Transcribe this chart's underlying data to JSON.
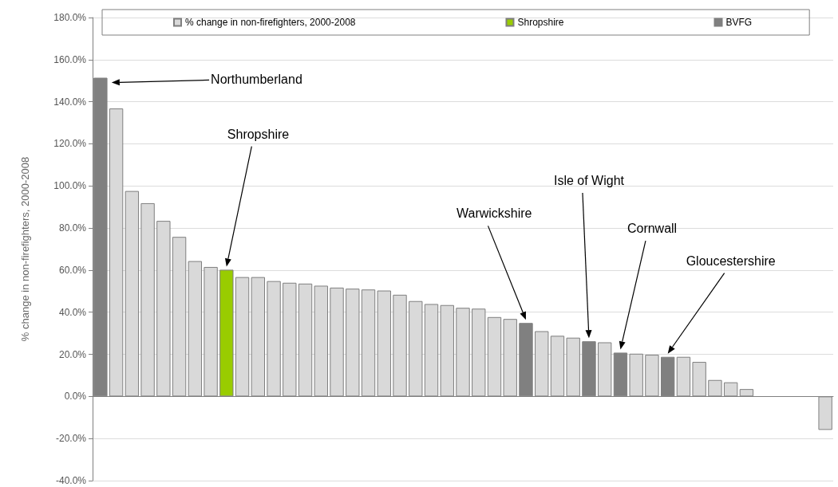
{
  "chart_data": {
    "type": "bar",
    "stacked": true,
    "ylabel": "% change in non-firefighters, 2000-2008",
    "categories": [
      null,
      null,
      null,
      null,
      null,
      null,
      null,
      null,
      null,
      null,
      null,
      null,
      null,
      null,
      null,
      null,
      null,
      null,
      null,
      null,
      null,
      null,
      null,
      null,
      null,
      null,
      null,
      null,
      null,
      null,
      null,
      null,
      null,
      null,
      null,
      null,
      null,
      null,
      null,
      null,
      null,
      null,
      null,
      null,
      null,
      null,
      null
    ],
    "series": [
      {
        "name": "% change in non-firefighters, 2000-2008",
        "color": "#d9d9d9",
        "values": [
          null,
          136.8,
          97.6,
          91.8,
          83.4,
          75.8,
          64.3,
          61.5,
          null,
          56.7,
          56.7,
          54.8,
          54.0,
          53.6,
          52.6,
          51.7,
          51.2,
          50.8,
          50.3,
          48.3,
          45.3,
          43.9,
          43.4,
          42.1,
          41.7,
          37.7,
          36.8,
          null,
          31.0,
          28.8,
          27.9,
          null,
          25.7,
          null,
          20.3,
          19.8,
          null,
          18.8,
          16.4,
          7.8,
          6.7,
          3.5,
          null,
          null,
          null,
          null,
          -15.9
        ]
      },
      {
        "name": "Shropshire",
        "color": "#99cc00",
        "values": [
          null,
          null,
          null,
          null,
          null,
          null,
          null,
          null,
          60.2,
          null,
          null,
          null,
          null,
          null,
          null,
          null,
          null,
          null,
          null,
          null,
          null,
          null,
          null,
          null,
          null,
          null,
          null,
          null,
          null,
          null,
          null,
          null,
          null,
          null,
          null,
          null,
          null,
          null,
          null,
          null,
          null,
          null,
          null,
          null,
          null,
          null,
          null
        ]
      },
      {
        "name": "BVFG",
        "color": "#808080",
        "values": [
          151.4,
          null,
          null,
          null,
          null,
          null,
          null,
          null,
          null,
          null,
          null,
          null,
          null,
          null,
          null,
          null,
          null,
          null,
          null,
          null,
          null,
          null,
          null,
          null,
          null,
          null,
          null,
          34.9,
          null,
          null,
          null,
          26.2,
          null,
          20.8,
          null,
          null,
          18.8,
          null,
          null,
          null,
          null,
          null,
          null,
          null,
          null,
          null,
          null
        ]
      }
    ],
    "ylim": [
      -40,
      180
    ],
    "yticks": [
      {
        "value": -40,
        "label": "-40.0%"
      },
      {
        "value": -20,
        "label": "-20.0%"
      },
      {
        "value": 0,
        "label": "0.0%"
      },
      {
        "value": 20,
        "label": "20.0%"
      },
      {
        "value": 40,
        "label": "40.0%"
      },
      {
        "value": 60,
        "label": "60.0%"
      },
      {
        "value": 80,
        "label": "80.0%"
      },
      {
        "value": 100,
        "label": "100.0%"
      },
      {
        "value": 120,
        "label": "120.0%"
      },
      {
        "value": 140,
        "label": "140.0%"
      },
      {
        "value": 160,
        "label": "160.0%"
      },
      {
        "value": 180,
        "label": "180.0%"
      }
    ],
    "grid": "y",
    "legend": "top",
    "annotations": [
      "Northumberland",
      "Shropshire",
      "Warwickshire",
      "Isle of Wight",
      "Cornwall",
      "Gloucestershire"
    ]
  }
}
